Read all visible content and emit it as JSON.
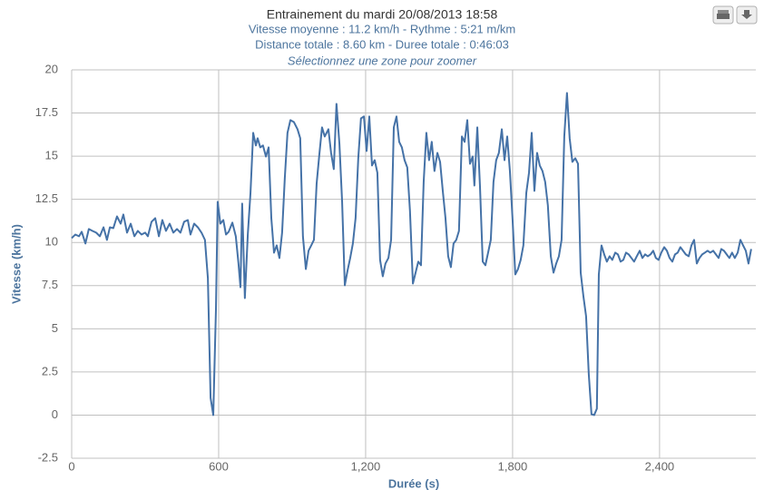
{
  "chart_data": {
    "type": "line",
    "title": "Entrainement du mardi 20/08/2013 18:58",
    "subtitles": [
      "Vitesse moyenne : 11.2 km/h - Rythme : 5:21 m/km",
      "Distance totale : 8.60 km - Duree totale : 0:46:03",
      "Sélectionnez une zone pour zoomer"
    ],
    "x_label": "Durée (s)",
    "y_label": "Vitesse (km/h)",
    "xlim": [
      0,
      2793
    ],
    "ylim": [
      -2.5,
      20
    ],
    "xticks": [
      0,
      600,
      {
        "value": 1200,
        "label": "1,200"
      },
      {
        "value": 1800,
        "label": "1,800"
      },
      {
        "value": 2400,
        "label": "2,400"
      }
    ],
    "yticks": [
      -2.5,
      0,
      2.5,
      5,
      7.5,
      10,
      12.5,
      15,
      17.5,
      20
    ],
    "grid": true,
    "series": [
      {
        "color": "#4572a7",
        "x": [
          0,
          15,
          30,
          41,
          56,
          70,
          85,
          100,
          115,
          130,
          144,
          156,
          170,
          185,
          200,
          211,
          226,
          241,
          256,
          270,
          285,
          300,
          311,
          326,
          341,
          356,
          370,
          385,
          400,
          415,
          430,
          444,
          459,
          474,
          485,
          500,
          515,
          530,
          544,
          556,
          567,
          578,
          589,
          596,
          607,
          619,
          630,
          641,
          656,
          670,
          681,
          689,
          696,
          707,
          719,
          730,
          741,
          752,
          759,
          770,
          781,
          793,
          804,
          815,
          826,
          837,
          848,
          859,
          870,
          881,
          893,
          907,
          922,
          933,
          944,
          956,
          967,
          978,
          989,
          1000,
          1011,
          1022,
          1033,
          1048,
          1059,
          1070,
          1081,
          1093,
          1104,
          1115,
          1126,
          1137,
          1148,
          1159,
          1170,
          1181,
          1193,
          1204,
          1215,
          1226,
          1237,
          1248,
          1259,
          1270,
          1281,
          1293,
          1304,
          1315,
          1326,
          1337,
          1348,
          1359,
          1370,
          1381,
          1393,
          1404,
          1415,
          1426,
          1437,
          1448,
          1459,
          1470,
          1481,
          1493,
          1504,
          1515,
          1526,
          1537,
          1548,
          1559,
          1570,
          1581,
          1593,
          1604,
          1615,
          1626,
          1637,
          1644,
          1656,
          1667,
          1678,
          1689,
          1700,
          1711,
          1722,
          1733,
          1744,
          1756,
          1767,
          1778,
          1789,
          1800,
          1811,
          1822,
          1833,
          1844,
          1856,
          1867,
          1878,
          1889,
          1900,
          1911,
          1922,
          1933,
          1944,
          1956,
          1967,
          1978,
          1989,
          2000,
          2011,
          2022,
          2033,
          2044,
          2056,
          2067,
          2078,
          2089,
          2100,
          2111,
          2122,
          2133,
          2144,
          2152,
          2163,
          2174,
          2185,
          2196,
          2207,
          2219,
          2230,
          2241,
          2252,
          2263,
          2274,
          2285,
          2296,
          2307,
          2319,
          2330,
          2341,
          2352,
          2363,
          2374,
          2385,
          2396,
          2407,
          2419,
          2430,
          2441,
          2452,
          2463,
          2474,
          2485,
          2496,
          2507,
          2519,
          2530,
          2541,
          2552,
          2563,
          2574,
          2585,
          2596,
          2607,
          2619,
          2630,
          2641,
          2652,
          2663,
          2674,
          2685,
          2696,
          2707,
          2719,
          2730,
          2741,
          2752,
          2763,
          2774
        ],
        "values": [
          10.25,
          10.46,
          10.36,
          10.62,
          9.94,
          10.78,
          10.67,
          10.57,
          10.36,
          10.88,
          10.15,
          10.88,
          10.83,
          11.51,
          11.09,
          11.62,
          10.57,
          11.09,
          10.36,
          10.67,
          10.46,
          10.57,
          10.36,
          11.2,
          11.41,
          10.36,
          11.3,
          10.67,
          11.09,
          10.57,
          10.78,
          10.57,
          11.2,
          11.3,
          10.46,
          11.09,
          10.88,
          10.57,
          10.15,
          7.94,
          1.0,
          0,
          6.15,
          12.36,
          11.09,
          11.3,
          10.46,
          10.62,
          11.15,
          10.36,
          8.78,
          7.41,
          12.25,
          6.78,
          10.46,
          12.88,
          16.35,
          15.62,
          16.04,
          15.51,
          15.62,
          14.98,
          15.51,
          11.41,
          9.41,
          9.83,
          9.1,
          10.57,
          13.72,
          16.35,
          17.09,
          16.98,
          16.56,
          16.04,
          10.36,
          8.46,
          9.52,
          9.83,
          10.15,
          13.41,
          15.09,
          16.67,
          16.14,
          16.56,
          15.19,
          14.25,
          18.03,
          15.72,
          12.36,
          7.52,
          8.36,
          9.1,
          9.94,
          11.41,
          14.88,
          17.19,
          17.3,
          15.3,
          17.3,
          14.46,
          14.77,
          14.04,
          8.99,
          8.04,
          8.78,
          9.1,
          10.15,
          16.67,
          17.3,
          15.83,
          15.51,
          14.77,
          14.35,
          11.83,
          7.62,
          8.25,
          8.89,
          8.68,
          13.51,
          16.35,
          14.77,
          15.83,
          14.14,
          15.19,
          14.67,
          12.99,
          11.41,
          9.2,
          8.57,
          9.94,
          10.15,
          10.67,
          16.14,
          15.83,
          17.09,
          14.56,
          14.98,
          13.3,
          16.67,
          13.2,
          8.89,
          8.68,
          9.41,
          10.15,
          13.51,
          14.77,
          15.19,
          16.56,
          14.77,
          16.14,
          14.14,
          11.3,
          8.15,
          8.46,
          8.99,
          9.83,
          12.88,
          14.04,
          16.35,
          12.99,
          15.19,
          14.46,
          14.14,
          13.51,
          12.15,
          9.2,
          8.25,
          8.78,
          9.2,
          10.15,
          16.14,
          18.66,
          16.04,
          14.67,
          14.88,
          14.56,
          8.25,
          6.89,
          5.73,
          2.37,
          0.05,
          0,
          0.37,
          8.15,
          9.83,
          9.31,
          8.89,
          9.2,
          8.99,
          9.41,
          9.31,
          8.89,
          8.99,
          9.41,
          9.31,
          9.1,
          8.89,
          9.2,
          9.52,
          9.1,
          9.31,
          9.2,
          9.31,
          9.52,
          9.1,
          8.99,
          9.41,
          9.73,
          9.52,
          9.1,
          8.89,
          9.31,
          9.41,
          9.73,
          9.52,
          9.31,
          9.2,
          9.83,
          10.15,
          8.78,
          9.1,
          9.31,
          9.41,
          9.52,
          9.41,
          9.52,
          9.31,
          9.1,
          9.62,
          9.52,
          9.31,
          9.1,
          9.41,
          9.1,
          9.41,
          10.15,
          9.83,
          9.52,
          8.78,
          9.62
        ]
      }
    ]
  }
}
